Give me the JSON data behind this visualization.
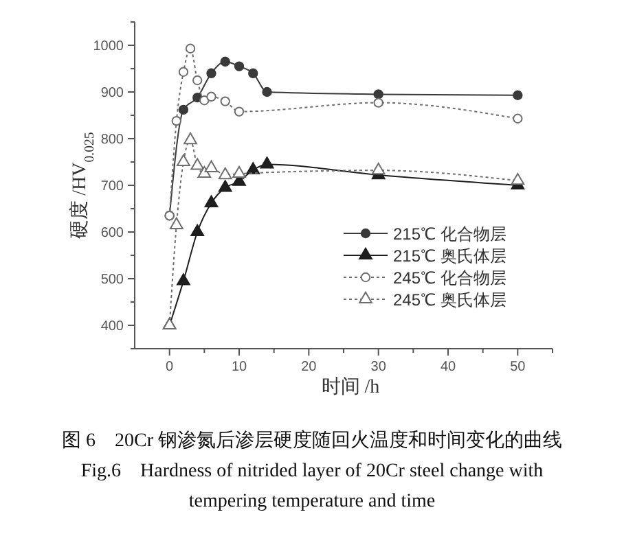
{
  "chart_data": {
    "type": "line",
    "title": "图 6　20Cr 钢渗氮后渗层硬度随回火温度和时间变化的曲线",
    "subtitle": "Fig.6　Hardness of nitrided layer of 20Cr steel change with tempering temperature and time",
    "xlabel": "时间 /h",
    "ylabel": "硬度 /HV$_{0.025}$",
    "xlim": [
      -5,
      55
    ],
    "ylim": [
      350,
      1050
    ],
    "xticks": [
      0,
      {
        "value": 5,
        "label": null
      },
      10,
      {
        "value": 15,
        "label": null
      },
      20,
      {
        "value": 25,
        "label": null
      },
      30,
      {
        "value": 35,
        "label": null
      },
      40,
      {
        "value": 45,
        "label": null
      },
      50,
      {
        "value": 55,
        "label": null
      }
    ],
    "yticks": [
      {
        "value": 350,
        "label": null
      },
      400,
      {
        "value": 450,
        "label": null
      },
      500,
      {
        "value": 550,
        "label": null
      },
      600,
      {
        "value": 650,
        "label": null
      },
      700,
      {
        "value": 750,
        "label": null
      },
      800,
      {
        "value": 850,
        "label": null
      },
      900,
      {
        "value": 950,
        "label": null
      },
      1000,
      {
        "value": 1050,
        "label": null
      }
    ],
    "legend": "bottom right",
    "grid": false,
    "series": [
      {
        "name": "215℃ 化合物层",
        "color": "#3a3a3a",
        "marker": "circle",
        "line_style": "solid",
        "x": [
          0,
          2,
          4,
          6,
          8,
          10,
          12,
          14,
          30,
          50
        ],
        "values": [
          635,
          862,
          888,
          940,
          965,
          955,
          940,
          900,
          895,
          893
        ]
      },
      {
        "name": "215℃ 奥氏体层",
        "color": "#1e1e1e",
        "marker": "triangle",
        "line_style": "solid",
        "x": [
          0,
          2,
          4,
          6,
          8,
          10,
          12,
          14,
          30,
          50
        ],
        "values": [
          400,
          495,
          600,
          662,
          695,
          708,
          733,
          745,
          722,
          700
        ]
      },
      {
        "name": "245℃ 化合物层",
        "color": "#6e6e6e",
        "marker": "circle",
        "line_style": "dotted",
        "x": [
          0,
          1,
          2,
          3,
          4,
          5,
          6,
          8,
          10,
          30,
          50
        ],
        "values": [
          635,
          838,
          943,
          993,
          925,
          882,
          890,
          880,
          858,
          877,
          843
        ]
      },
      {
        "name": "245℃ 奥氏体层",
        "color": "#6e6e6e",
        "marker": "triangle",
        "line_style": "dotted",
        "x": [
          0,
          1,
          2,
          3,
          4,
          5,
          6,
          8,
          10,
          30,
          50
        ],
        "values": [
          400,
          615,
          750,
          797,
          742,
          725,
          737,
          722,
          725,
          732,
          710
        ]
      }
    ]
  }
}
